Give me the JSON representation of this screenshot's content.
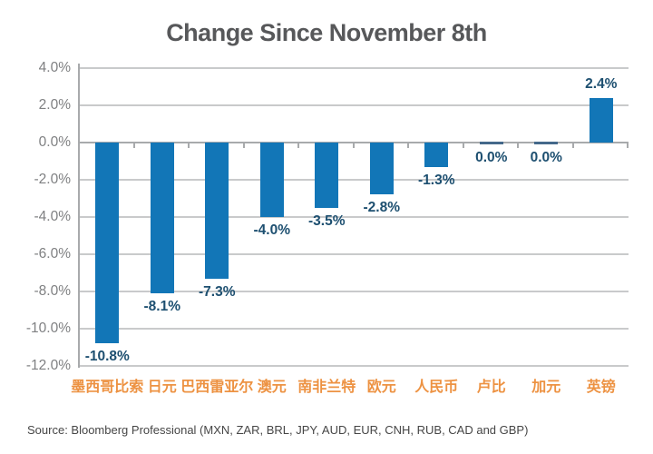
{
  "page": {
    "title": "Change Since November 8th",
    "source": "Source: Bloomberg Professional (MXN, ZAR, BRL, JPY, AUD, EUR, CNH, RUB, CAD and GBP)"
  },
  "chart_data": {
    "type": "bar",
    "title": "Change Since November 8th",
    "categories": [
      "墨西哥比索",
      "日元",
      "巴西雷亚尔",
      "澳元",
      "南非兰特",
      "欧元",
      "人民币",
      "卢比",
      "加元",
      "英镑"
    ],
    "values": [
      -10.8,
      -8.1,
      -7.3,
      -4.0,
      -3.5,
      -2.8,
      -1.3,
      0.0,
      0.0,
      2.4
    ],
    "value_labels": [
      "-10.8%",
      "-8.1%",
      "-7.3%",
      "-4.0%",
      "-3.5%",
      "-2.8%",
      "-1.3%",
      "0.0%",
      "0.0%",
      "2.4%"
    ],
    "ylim": [
      -12,
      4
    ],
    "ytick_step": 2,
    "ytick_labels": [
      "4.0%",
      "2.0%",
      "0.0%",
      "-2.0%",
      "-4.0%",
      "-6.0%",
      "-8.0%",
      "-10.0%",
      "-12.0%"
    ],
    "grid": true,
    "legend": "none",
    "source_note": "Source: Bloomberg Professional (MXN, ZAR, BRL, JPY, AUD, EUR, CNH, RUB, CAD and GBP)",
    "colors": {
      "bar": "#1276b7",
      "value_label": "#1d4f70",
      "category_label": "#ed9242",
      "grid_line": "#c9cacb",
      "zero_line": "#a8aaac",
      "axis_line": "#a8aaac",
      "ytick_label": "#7f8082",
      "title": "#57585a",
      "source": "#464646",
      "zero_bar_sliver": "#44688a"
    }
  }
}
